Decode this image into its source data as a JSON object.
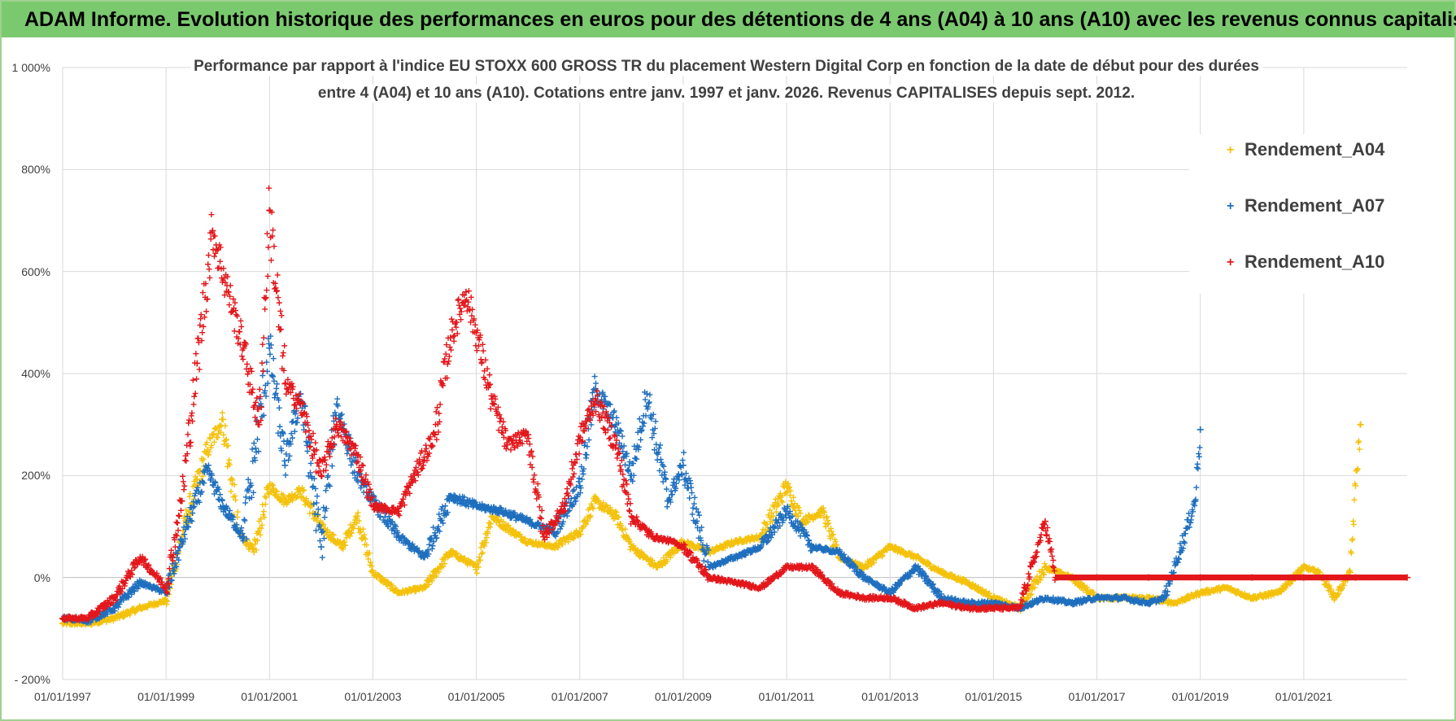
{
  "banner": {
    "title": "ADAM Informe. Evolution historique des performances en euros pour des détentions de 4 ans (A04) à 10 ans (A10) avec les revenus connus capitalisés"
  },
  "colors": {
    "banner": "#7bc96f",
    "A04": "#f4c20d",
    "A07": "#1f6fbf",
    "A10": "#e3171b",
    "grid": "#d9d9d9"
  },
  "chart_data": {
    "type": "scatter",
    "title_line1": "Performance par rapport à l'indice EU STOXX 600 GROSS TR  du placement Western Digital Corp en fonction de la date de début pour des durées",
    "title_line2": "entre 4 (A04) et 10 ans (A10).  Cotations entre janv. 1997 et janv. 2026.  Revenus CAPITALISES  depuis sept. 2012.",
    "ylim": [
      -200,
      1000
    ],
    "yticks": [
      -200,
      0,
      200,
      400,
      600,
      800,
      1000
    ],
    "ytick_labels": [
      "- 200%",
      "0%",
      "200%",
      "400%",
      "600%",
      "800%",
      "1 000%"
    ],
    "xlim": [
      1997.0,
      2023.0
    ],
    "xticks": [
      1997,
      1999,
      2001,
      2003,
      2005,
      2007,
      2009,
      2011,
      2013,
      2015,
      2017,
      2019,
      2021
    ],
    "xtick_labels": [
      "01/01/1997",
      "01/01/1999",
      "01/01/2001",
      "01/01/2003",
      "01/01/2005",
      "01/01/2007",
      "01/01/2009",
      "01/01/2011",
      "01/01/2013",
      "01/01/2015",
      "01/01/2017",
      "01/01/2019",
      "01/01/2021"
    ],
    "grid": true,
    "marker": "+",
    "legend_position": "top-right",
    "series": [
      {
        "name": "Rendement_A04",
        "x": [
          1997.0,
          1997.5,
          1998.0,
          1998.5,
          1999.0,
          1999.4,
          1999.8,
          2000.1,
          2000.4,
          2000.7,
          2001.0,
          2001.3,
          2001.6,
          2002.0,
          2002.4,
          2002.7,
          2003.0,
          2003.5,
          2004.0,
          2004.5,
          2005.0,
          2005.3,
          2005.7,
          2006.0,
          2006.5,
          2007.0,
          2007.3,
          2007.7,
          2008.0,
          2008.5,
          2009.0,
          2009.5,
          2010.0,
          2010.5,
          2011.0,
          2011.3,
          2011.7,
          2012.0,
          2012.5,
          2013.0,
          2013.5,
          2014.0,
          2014.5,
          2015.0,
          2015.5,
          2016.0,
          2016.5,
          2017.0,
          2017.5,
          2018.0,
          2018.5,
          2019.0,
          2019.5,
          2020.0,
          2020.5,
          2021.0,
          2021.3,
          2021.6,
          2021.9,
          2022.0,
          2022.1
        ],
        "values": [
          -90,
          -90,
          -80,
          -60,
          -45,
          120,
          250,
          310,
          90,
          50,
          180,
          150,
          170,
          100,
          60,
          120,
          10,
          -30,
          -20,
          50,
          20,
          120,
          90,
          70,
          60,
          90,
          150,
          120,
          60,
          20,
          70,
          50,
          70,
          80,
          180,
          110,
          130,
          40,
          20,
          60,
          40,
          10,
          -10,
          -40,
          -60,
          20,
          0,
          -40,
          -40,
          -40,
          -50,
          -30,
          -20,
          -40,
          -30,
          20,
          10,
          -40,
          10,
          180,
          300
        ]
      },
      {
        "name": "Rendement_A07",
        "x": [
          1997.0,
          1997.5,
          1998.0,
          1998.5,
          1999.0,
          1999.4,
          1999.8,
          2000.1,
          2000.5,
          2001.0,
          2001.3,
          2001.6,
          2002.0,
          2002.3,
          2002.7,
          2003.0,
          2003.5,
          2004.0,
          2004.5,
          2005.0,
          2005.5,
          2006.0,
          2006.5,
          2007.0,
          2007.3,
          2007.7,
          2008.0,
          2008.3,
          2008.7,
          2009.0,
          2009.5,
          2010.0,
          2010.5,
          2011.0,
          2011.5,
          2012.0,
          2012.5,
          2013.0,
          2013.5,
          2014.0,
          2014.5,
          2015.0,
          2015.5,
          2016.0,
          2016.5,
          2017.0,
          2017.5,
          2018.0,
          2018.3,
          2018.6,
          2018.9,
          2019.0
        ],
        "values": [
          -80,
          -85,
          -60,
          -10,
          -30,
          100,
          210,
          140,
          80,
          450,
          220,
          360,
          60,
          340,
          200,
          150,
          80,
          40,
          160,
          140,
          130,
          110,
          90,
          180,
          370,
          300,
          200,
          360,
          150,
          220,
          20,
          40,
          60,
          130,
          60,
          50,
          0,
          -30,
          20,
          -40,
          -50,
          -50,
          -60,
          -40,
          -50,
          -40,
          -40,
          -50,
          -40,
          50,
          150,
          290
        ]
      },
      {
        "name": "Rendement_A10",
        "x": [
          1997.0,
          1997.5,
          1998.0,
          1998.5,
          1999.0,
          1999.3,
          1999.6,
          1999.9,
          2000.2,
          2000.5,
          2000.8,
          2001.0,
          2001.3,
          2001.6,
          2002.0,
          2002.3,
          2002.7,
          2003.0,
          2003.5,
          2003.8,
          2004.2,
          2004.5,
          2004.8,
          2005.0,
          2005.3,
          2005.6,
          2006.0,
          2006.3,
          2006.7,
          2007.0,
          2007.3,
          2007.7,
          2008.0,
          2008.4,
          2008.8,
          2009.0,
          2009.5,
          2010.0,
          2010.5,
          2011.0,
          2011.5,
          2012.0,
          2012.5,
          2013.0,
          2013.5,
          2014.0,
          2014.5,
          2015.0,
          2015.5,
          2015.8,
          2016.0,
          2016.2,
          2017.0,
          2018.0,
          2019.0,
          2020.0,
          2021.0,
          2022.0,
          2023.0
        ],
        "values": [
          -80,
          -80,
          -40,
          40,
          -20,
          150,
          420,
          680,
          560,
          450,
          300,
          720,
          380,
          340,
          200,
          300,
          240,
          140,
          130,
          200,
          280,
          470,
          560,
          480,
          350,
          260,
          280,
          80,
          140,
          270,
          350,
          260,
          120,
          80,
          70,
          60,
          0,
          -10,
          -20,
          20,
          20,
          -30,
          -40,
          -40,
          -60,
          -50,
          -60,
          -60,
          -60,
          40,
          110,
          0,
          0,
          0,
          0,
          0,
          0,
          0,
          0
        ]
      }
    ]
  }
}
